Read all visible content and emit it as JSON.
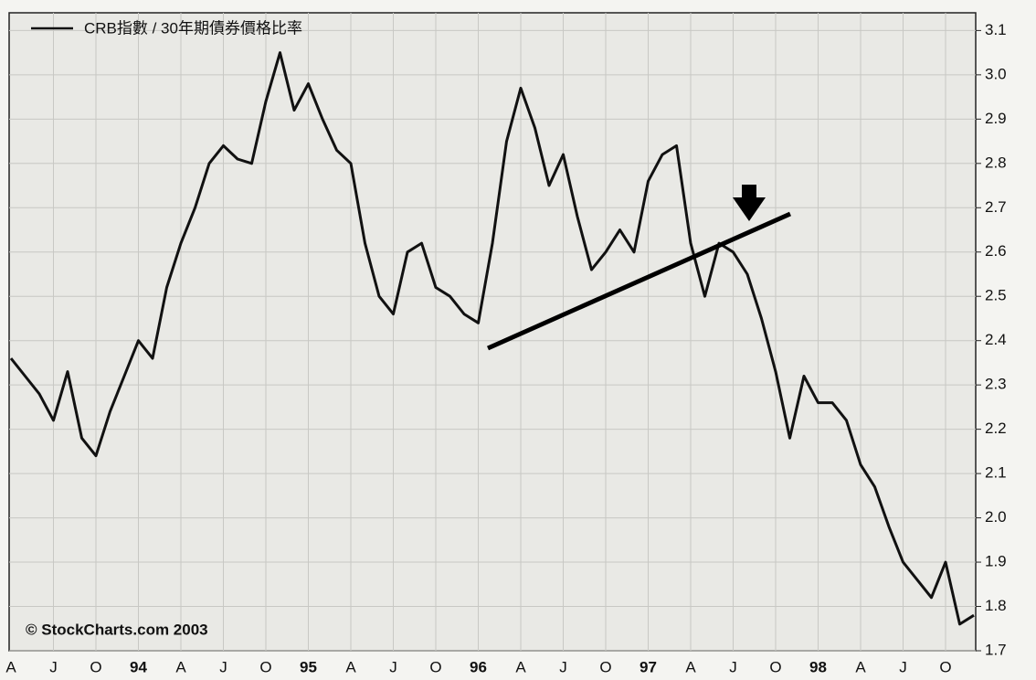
{
  "chart_data": {
    "type": "line",
    "categories": [
      "A",
      null,
      null,
      "J",
      null,
      null,
      "O",
      null,
      null,
      "94",
      null,
      null,
      "A",
      null,
      null,
      "J",
      null,
      null,
      "O",
      null,
      null,
      "95",
      null,
      null,
      "A",
      null,
      null,
      "J",
      null,
      null,
      "O",
      null,
      null,
      "96",
      null,
      null,
      "A",
      null,
      null,
      "J",
      null,
      null,
      "O",
      null,
      null,
      "97",
      null,
      null,
      "A",
      null,
      null,
      "J",
      null,
      null,
      "O",
      null,
      null,
      "98",
      null,
      null,
      "A",
      null,
      null,
      "J",
      null,
      null,
      "O",
      null,
      null
    ],
    "series": [
      {
        "name": "CRB指數 / 30年期債券價格比率",
        "color": "#111111",
        "values": [
          2.36,
          2.32,
          2.28,
          2.22,
          2.33,
          2.18,
          2.14,
          2.24,
          2.32,
          2.4,
          2.36,
          2.52,
          2.62,
          2.7,
          2.8,
          2.84,
          2.81,
          2.8,
          2.94,
          3.05,
          2.92,
          2.98,
          2.9,
          2.83,
          2.8,
          2.62,
          2.5,
          2.46,
          2.6,
          2.62,
          2.52,
          2.5,
          2.46,
          2.44,
          2.62,
          2.85,
          2.97,
          2.88,
          2.75,
          2.82,
          2.68,
          2.56,
          2.6,
          2.65,
          2.6,
          2.76,
          2.82,
          2.84,
          2.62,
          2.5,
          2.62,
          2.6,
          2.55,
          2.45,
          2.33,
          2.18,
          2.32,
          2.26,
          2.26,
          2.22,
          2.12,
          2.07,
          1.98,
          1.9,
          1.86,
          1.82,
          1.9,
          1.76,
          1.78
        ]
      }
    ],
    "ylim": [
      1.7,
      3.14
    ],
    "yticks": [
      1.7,
      1.8,
      1.9,
      {
        "value": 2,
        "label": "2.0"
      },
      2.1,
      2.2,
      2.3,
      2.4,
      2.5,
      2.6,
      2.7,
      2.8,
      2.9,
      {
        "value": 3,
        "label": "3.0"
      },
      3.1
    ],
    "grid": true,
    "annotations": [
      "© StockCharts.com 2003"
    ]
  }
}
